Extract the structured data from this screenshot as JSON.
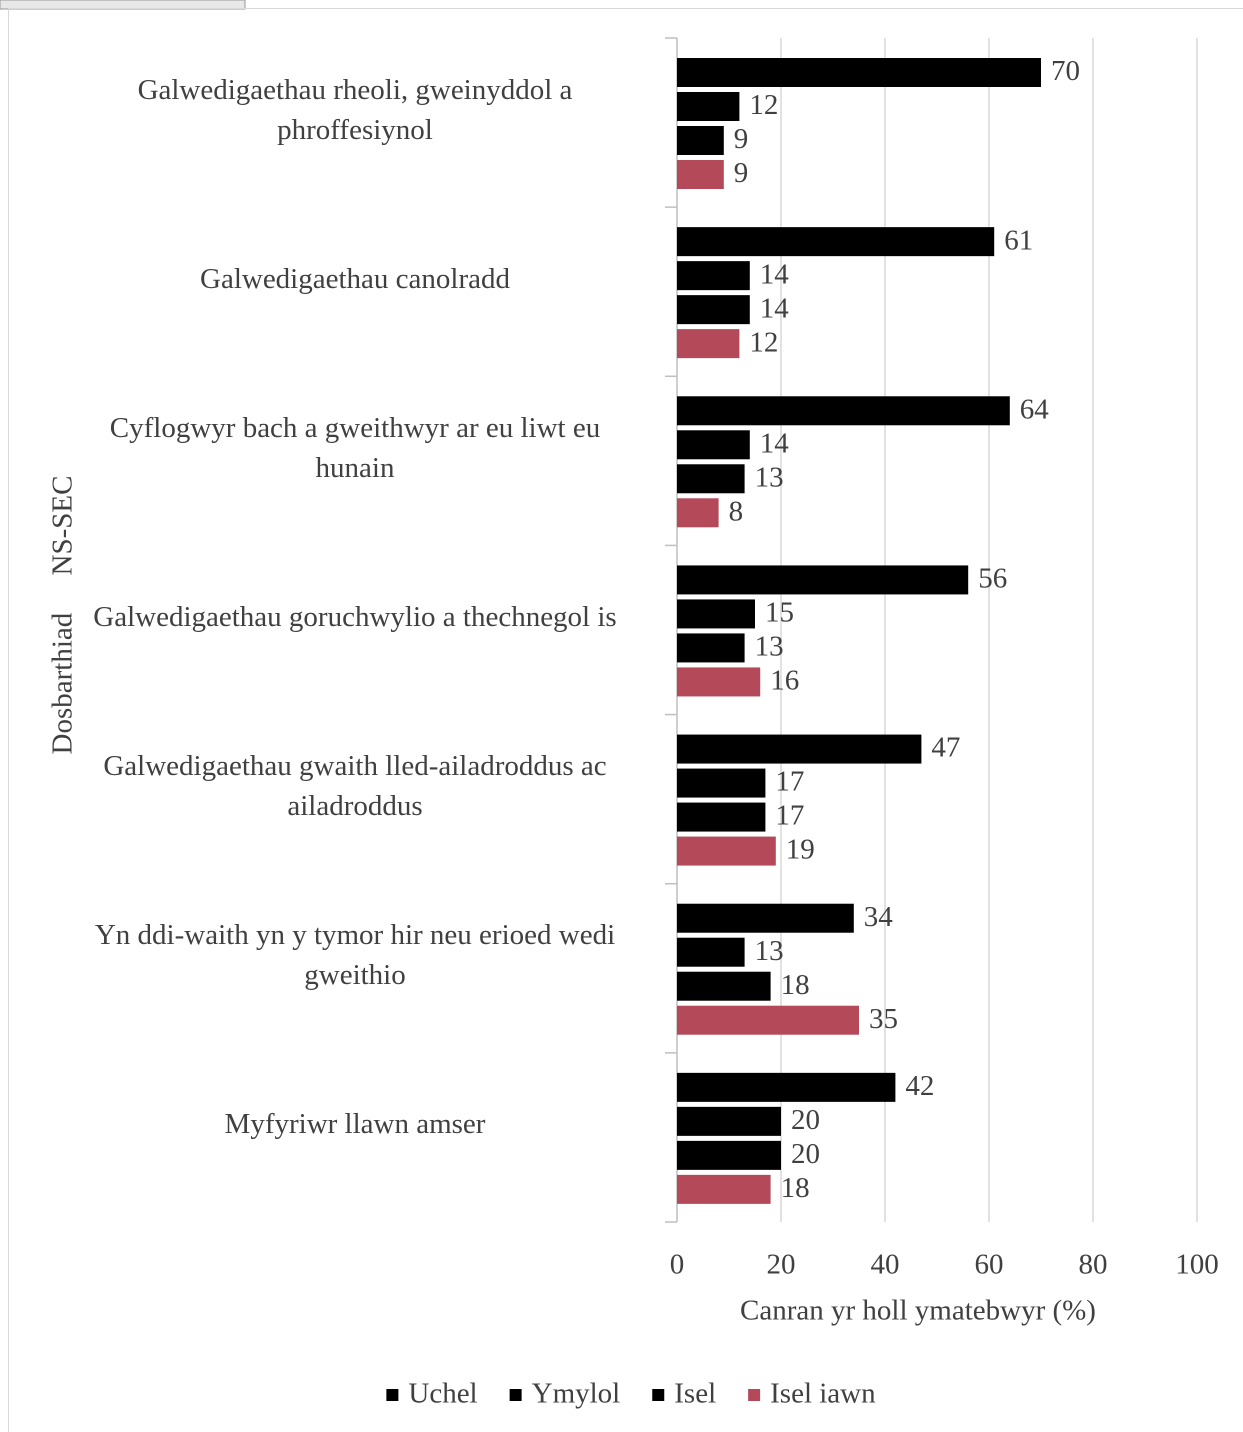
{
  "chart_data": {
    "type": "bar",
    "orientation": "horizontal",
    "categories": [
      "Galwedigaethau rheoli, gweinyddol a phroffesiynol",
      "Galwedigaethau canolradd",
      "Cyflogwyr bach a gweithwyr ar eu liwt eu hunain",
      "Galwedigaethau goruchwylio a thechnegol is",
      "Galwedigaethau gwaith lled-ailadroddus ac ailadroddus",
      "Yn ddi-waith yn y tymor hir neu erioed wedi gweithio",
      "Myfyriwr llawn amser"
    ],
    "series": [
      {
        "name": "Uchel",
        "color": "#000000",
        "values": [
          70,
          61,
          64,
          56,
          47,
          34,
          42
        ]
      },
      {
        "name": "Ymylol",
        "color": "#000000",
        "values": [
          12,
          14,
          14,
          15,
          17,
          13,
          20
        ]
      },
      {
        "name": "Isel",
        "color": "#000000",
        "values": [
          9,
          14,
          13,
          13,
          17,
          18,
          20
        ]
      },
      {
        "name": "Isel iawn",
        "color": "#b4495a",
        "values": [
          9,
          12,
          8,
          16,
          19,
          35,
          18
        ]
      }
    ],
    "x_label": "Canran yr holl ymatebwyr (%)",
    "y_label": "Dosbarthiad NS-SEC",
    "xlim": [
      0,
      100
    ],
    "xticks": [
      0,
      20,
      40,
      60,
      80,
      100
    ],
    "grid": true,
    "legend": "bottom"
  }
}
